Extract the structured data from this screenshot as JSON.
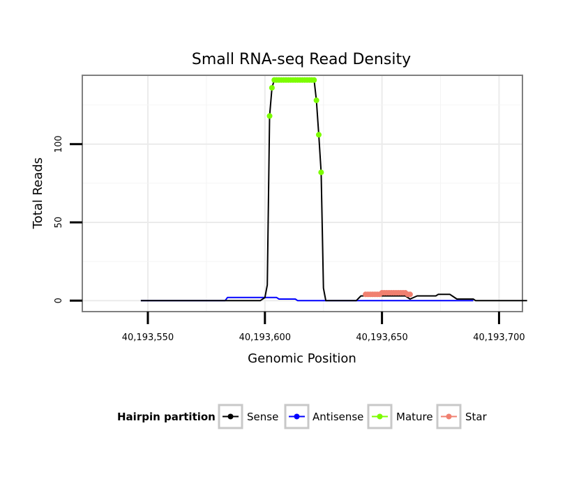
{
  "chart_data": {
    "type": "line",
    "title": "Small RNA-seq Read Density",
    "xlabel": "Genomic Position",
    "ylabel": "Total Reads",
    "xlim": [
      40193522,
      40193710
    ],
    "ylim": [
      -7,
      144
    ],
    "x_ticks": [
      40193550,
      40193600,
      40193650,
      40193700
    ],
    "x_tick_labels": [
      "40,193,550",
      "40,193,600",
      "40,193,650",
      "40,193,700"
    ],
    "y_ticks": [
      0,
      50,
      100
    ],
    "y_tick_labels": [
      "0",
      "50",
      "100"
    ],
    "legend": {
      "title": "Hairpin partition",
      "position": "bottom",
      "entries": [
        {
          "label": "Sense",
          "color": "#000000"
        },
        {
          "label": "Antisense",
          "color": "#0000ff"
        },
        {
          "label": "Mature",
          "color": "#7cfc00"
        },
        {
          "label": "Star",
          "color": "#f08070"
        }
      ]
    },
    "series": [
      {
        "name": "Sense",
        "color": "#000000",
        "points": [
          [
            40193547,
            0
          ],
          [
            40193598,
            0
          ],
          [
            40193600,
            2
          ],
          [
            40193601,
            10
          ],
          [
            40193602,
            118
          ],
          [
            40193603,
            136
          ],
          [
            40193604,
            141
          ],
          [
            40193621,
            141
          ],
          [
            40193622,
            128
          ],
          [
            40193623,
            106
          ],
          [
            40193624,
            82
          ],
          [
            40193625,
            8
          ],
          [
            40193626,
            0
          ],
          [
            40193639,
            0
          ],
          [
            40193641,
            3
          ],
          [
            40193660,
            3
          ],
          [
            40193662,
            1
          ],
          [
            40193665,
            3
          ],
          [
            40193673,
            3
          ],
          [
            40193674,
            4
          ],
          [
            40193679,
            4
          ],
          [
            40193680,
            3
          ],
          [
            40193682,
            1
          ],
          [
            40193689,
            1
          ],
          [
            40193690,
            0
          ],
          [
            40193712,
            0
          ]
        ]
      },
      {
        "name": "Antisense",
        "color": "#0000ff",
        "points": [
          [
            40193547,
            0
          ],
          [
            40193583,
            0
          ],
          [
            40193584,
            2
          ],
          [
            40193605,
            2
          ],
          [
            40193606,
            1
          ],
          [
            40193613,
            1
          ],
          [
            40193614,
            0
          ],
          [
            40193689,
            0
          ]
        ]
      },
      {
        "name": "Mature",
        "color": "#7cfc00",
        "points": [
          [
            40193602,
            118
          ],
          [
            40193603,
            136
          ],
          [
            40193604,
            141
          ],
          [
            40193605,
            141
          ],
          [
            40193606,
            141
          ],
          [
            40193607,
            141
          ],
          [
            40193608,
            141
          ],
          [
            40193609,
            141
          ],
          [
            40193610,
            141
          ],
          [
            40193611,
            141
          ],
          [
            40193612,
            141
          ],
          [
            40193613,
            141
          ],
          [
            40193614,
            141
          ],
          [
            40193615,
            141
          ],
          [
            40193616,
            141
          ],
          [
            40193617,
            141
          ],
          [
            40193618,
            141
          ],
          [
            40193619,
            141
          ],
          [
            40193620,
            141
          ],
          [
            40193621,
            141
          ],
          [
            40193622,
            128
          ],
          [
            40193623,
            106
          ],
          [
            40193624,
            82
          ]
        ]
      },
      {
        "name": "Star",
        "color": "#f08070",
        "points": [
          [
            40193643,
            4
          ],
          [
            40193644,
            4
          ],
          [
            40193645,
            4
          ],
          [
            40193646,
            4
          ],
          [
            40193647,
            4
          ],
          [
            40193648,
            4
          ],
          [
            40193649,
            4
          ],
          [
            40193650,
            5
          ],
          [
            40193651,
            5
          ],
          [
            40193652,
            5
          ],
          [
            40193653,
            5
          ],
          [
            40193654,
            5
          ],
          [
            40193655,
            5
          ],
          [
            40193656,
            5
          ],
          [
            40193657,
            5
          ],
          [
            40193658,
            5
          ],
          [
            40193659,
            5
          ],
          [
            40193660,
            5
          ],
          [
            40193661,
            4
          ],
          [
            40193662,
            4
          ]
        ]
      }
    ]
  }
}
